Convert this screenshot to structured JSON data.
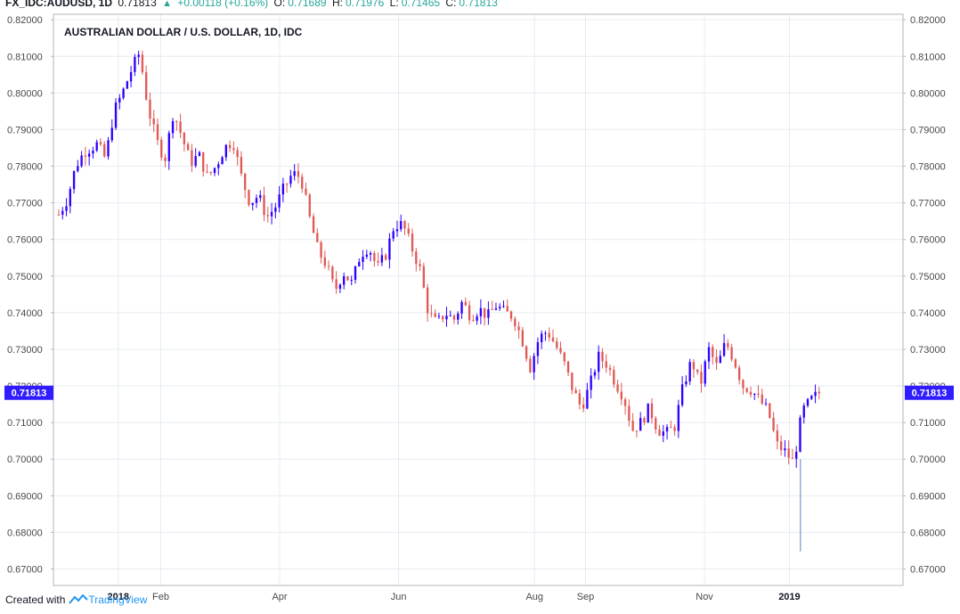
{
  "header": {
    "symbol": "FX_IDC:AUDUSD, 1D",
    "last": "0.71813",
    "change": "+0.00118 (+0.16%)",
    "o_label": "O:",
    "o_value": "0.71689",
    "h_label": "H:",
    "h_value": "0.71976",
    "l_label": "L:",
    "l_value": "0.71465",
    "c_label": "C:",
    "c_value": "0.71813"
  },
  "footer": {
    "created_with": "Created with",
    "brand": "TradingView"
  },
  "colors": {
    "up": "#2f00ff",
    "down": "#e05a55",
    "grid": "#e6ecf2",
    "badge": "#2f1cff",
    "change_up": "#26a69a"
  },
  "chart_data": {
    "type": "candlestick",
    "title": "AUSTRALIAN DOLLAR / U.S. DOLLAR, 1D, IDC",
    "price_label": "0.71813",
    "ylim": [
      0.6655,
      0.8215
    ],
    "y_ticks": [
      "0.82000",
      "0.81000",
      "0.80000",
      "0.79000",
      "0.78000",
      "0.77000",
      "0.76000",
      "0.75000",
      "0.74000",
      "0.73000",
      "0.72000",
      "0.71000",
      "0.70000",
      "0.69000",
      "0.68000",
      "0.67000"
    ],
    "x_ticks": [
      {
        "label": "2018",
        "t": 0.07,
        "bold": true
      },
      {
        "label": "Feb",
        "t": 0.12,
        "bold": false
      },
      {
        "label": "Apr",
        "t": 0.26,
        "bold": false
      },
      {
        "label": "Jun",
        "t": 0.4,
        "bold": false
      },
      {
        "label": "Aug",
        "t": 0.56,
        "bold": false
      },
      {
        "label": "Sep",
        "t": 0.62,
        "bold": false
      },
      {
        "label": "Nov",
        "t": 0.76,
        "bold": false
      },
      {
        "label": "2019",
        "t": 0.86,
        "bold": true
      }
    ],
    "grid": true,
    "close_path": [
      [
        0,
        0.7668
      ],
      [
        0.01,
        0.771
      ],
      [
        0.02,
        0.78
      ],
      [
        0.03,
        0.784
      ],
      [
        0.045,
        0.786
      ],
      [
        0.055,
        0.782
      ],
      [
        0.065,
        0.795
      ],
      [
        0.075,
        0.8
      ],
      [
        0.085,
        0.806
      ],
      [
        0.095,
        0.811
      ],
      [
        0.105,
        0.796
      ],
      [
        0.115,
        0.787
      ],
      [
        0.125,
        0.782
      ],
      [
        0.135,
        0.795
      ],
      [
        0.145,
        0.788
      ],
      [
        0.155,
        0.781
      ],
      [
        0.165,
        0.783
      ],
      [
        0.175,
        0.777
      ],
      [
        0.185,
        0.78
      ],
      [
        0.195,
        0.785
      ],
      [
        0.205,
        0.787
      ],
      [
        0.215,
        0.777
      ],
      [
        0.225,
        0.77
      ],
      [
        0.235,
        0.772
      ],
      [
        0.245,
        0.766
      ],
      [
        0.255,
        0.769
      ],
      [
        0.265,
        0.774
      ],
      [
        0.275,
        0.778
      ],
      [
        0.285,
        0.777
      ],
      [
        0.295,
        0.766
      ],
      [
        0.305,
        0.757
      ],
      [
        0.315,
        0.753
      ],
      [
        0.325,
        0.746
      ],
      [
        0.335,
        0.751
      ],
      [
        0.345,
        0.748
      ],
      [
        0.355,
        0.756
      ],
      [
        0.365,
        0.758
      ],
      [
        0.375,
        0.752
      ],
      [
        0.385,
        0.756
      ],
      [
        0.395,
        0.764
      ],
      [
        0.405,
        0.764
      ],
      [
        0.415,
        0.758
      ],
      [
        0.425,
        0.752
      ],
      [
        0.435,
        0.74
      ],
      [
        0.445,
        0.737
      ],
      [
        0.455,
        0.74
      ],
      [
        0.465,
        0.738
      ],
      [
        0.475,
        0.743
      ],
      [
        0.485,
        0.739
      ],
      [
        0.495,
        0.741
      ],
      [
        0.505,
        0.739
      ],
      [
        0.515,
        0.742
      ],
      [
        0.525,
        0.74
      ],
      [
        0.535,
        0.739
      ],
      [
        0.545,
        0.733
      ],
      [
        0.555,
        0.725
      ],
      [
        0.565,
        0.733
      ],
      [
        0.575,
        0.735
      ],
      [
        0.585,
        0.731
      ],
      [
        0.595,
        0.726
      ],
      [
        0.605,
        0.719
      ],
      [
        0.615,
        0.714
      ],
      [
        0.625,
        0.72
      ],
      [
        0.635,
        0.728
      ],
      [
        0.645,
        0.726
      ],
      [
        0.655,
        0.721
      ],
      [
        0.665,
        0.717
      ],
      [
        0.675,
        0.708
      ],
      [
        0.685,
        0.71
      ],
      [
        0.695,
        0.714
      ],
      [
        0.705,
        0.708
      ],
      [
        0.715,
        0.707
      ],
      [
        0.725,
        0.709
      ],
      [
        0.735,
        0.72
      ],
      [
        0.745,
        0.727
      ],
      [
        0.755,
        0.72
      ],
      [
        0.765,
        0.73
      ],
      [
        0.775,
        0.725
      ],
      [
        0.785,
        0.732
      ],
      [
        0.795,
        0.727
      ],
      [
        0.805,
        0.72
      ],
      [
        0.815,
        0.719
      ],
      [
        0.825,
        0.716
      ],
      [
        0.835,
        0.713
      ],
      [
        0.845,
        0.704
      ],
      [
        0.855,
        0.702
      ],
      [
        0.865,
        0.699
      ],
      [
        0.875,
        0.713
      ],
      [
        0.885,
        0.716
      ],
      [
        0.895,
        0.7181
      ]
    ],
    "spike": {
      "t": 0.873,
      "low": 0.6748
    }
  }
}
